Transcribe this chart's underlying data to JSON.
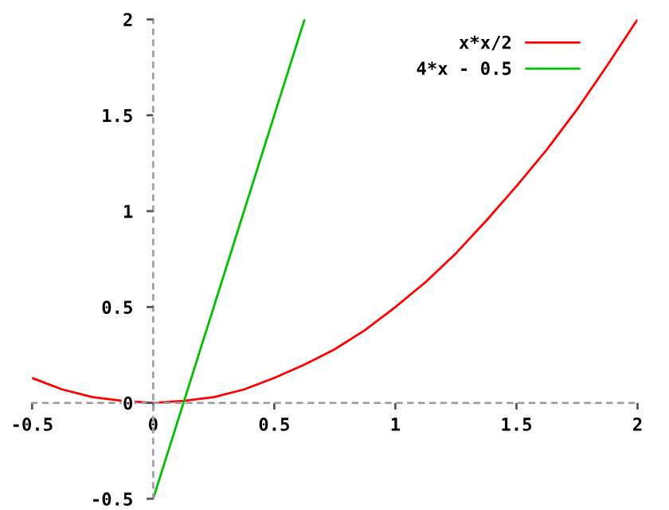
{
  "chart_data": {
    "type": "line",
    "x": [
      -0.5,
      -0.375,
      -0.25,
      -0.125,
      0,
      0.125,
      0.25,
      0.375,
      0.5,
      0.625,
      0.75,
      0.875,
      1,
      1.125,
      1.25,
      1.375,
      1.5,
      1.625,
      1.75,
      1.875,
      2
    ],
    "series": [
      {
        "name": "x*x/2",
        "color": "#ff0000",
        "values": [
          0.13,
          0.07,
          0.03,
          0.01,
          0,
          0.01,
          0.03,
          0.07,
          0.13,
          0.2,
          0.28,
          0.38,
          0.5,
          0.63,
          0.78,
          0.95,
          1.13,
          1.32,
          1.53,
          1.76,
          2
        ]
      },
      {
        "name": "4*x - 0.5",
        "color": "#00c000",
        "x": [
          0,
          0.125,
          0.25,
          0.375,
          0.5,
          0.625
        ],
        "values": [
          -0.5,
          0,
          0.5,
          1,
          1.5,
          2
        ]
      }
    ],
    "xlim": [
      -0.5,
      2
    ],
    "ylim": [
      -0.5,
      2
    ],
    "xticks": [
      -0.5,
      0,
      0.5,
      1,
      1.5,
      2
    ],
    "yticks": [
      -0.5,
      0,
      0.5,
      1,
      1.5,
      2
    ],
    "legend": "top right",
    "line_style": "solid",
    "marker": "none"
  }
}
